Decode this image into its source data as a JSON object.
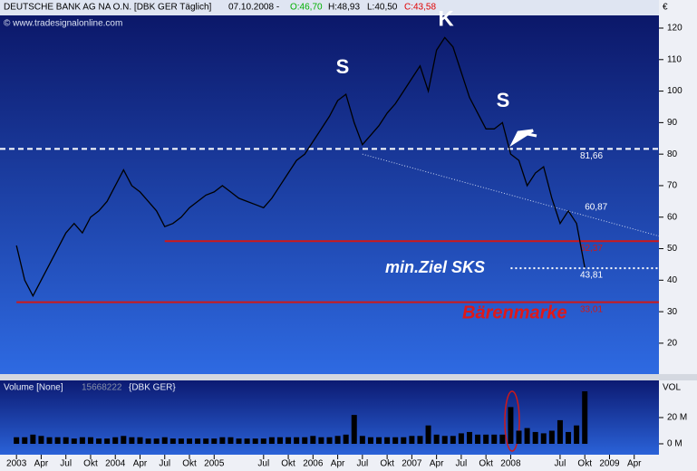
{
  "chart_data": {
    "type": "line",
    "header": {
      "name": "DEUTSCHE BANK AG NA O.N. [DBK GER  Täglich]",
      "date": "07.10.2008 -",
      "open": "O:46,70",
      "high": "H:48,93",
      "low": "L:40,50",
      "close": "C:43,58"
    },
    "copyright": "© www.tradesignalonline.com",
    "currency": "€",
    "x": [
      "2003-01",
      "2003-02",
      "2003-03",
      "2003-04",
      "2003-05",
      "2003-06",
      "2003-07",
      "2003-08",
      "2003-09",
      "2003-10",
      "2003-11",
      "2003-12",
      "2004-01",
      "2004-02",
      "2004-03",
      "2004-04",
      "2004-05",
      "2004-06",
      "2004-07",
      "2004-08",
      "2004-09",
      "2004-10",
      "2004-11",
      "2004-12",
      "2005-01",
      "2005-02",
      "2005-03",
      "2005-04",
      "2005-05",
      "2005-06",
      "2005-07",
      "2005-08",
      "2005-09",
      "2005-10",
      "2005-11",
      "2005-12",
      "2006-01",
      "2006-02",
      "2006-03",
      "2006-04",
      "2006-05",
      "2006-06",
      "2006-07",
      "2006-08",
      "2006-09",
      "2006-10",
      "2006-11",
      "2006-12",
      "2007-01",
      "2007-02",
      "2007-03",
      "2007-04",
      "2007-05",
      "2007-06",
      "2007-07",
      "2007-08",
      "2007-09",
      "2007-10",
      "2007-11",
      "2007-12",
      "2008-01",
      "2008-02",
      "2008-03",
      "2008-04",
      "2008-05",
      "2008-06",
      "2008-07",
      "2008-08",
      "2008-09",
      "2008-10"
    ],
    "series": [
      {
        "name": "DEUTSCHE BANK AG NA O.N.",
        "color": "#000000",
        "values": [
          51,
          40,
          35,
          40,
          45,
          50,
          55,
          58,
          55,
          60,
          62,
          65,
          70,
          75,
          70,
          68,
          65,
          62,
          57,
          58,
          60,
          63,
          65,
          67,
          68,
          70,
          68,
          66,
          65,
          64,
          63,
          66,
          70,
          74,
          78,
          80,
          84,
          88,
          92,
          97,
          99,
          90,
          83,
          86,
          89,
          93,
          96,
          100,
          104,
          108,
          100,
          113,
          117,
          114,
          106,
          98,
          93,
          88,
          88,
          90,
          80,
          78,
          70,
          74,
          76,
          66,
          58,
          62,
          58,
          44
        ]
      }
    ],
    "xlim": [
      "2002-11",
      "2009-07"
    ],
    "ylim": [
      10.2,
      124.6
    ],
    "yticks": [
      20,
      30,
      40,
      50,
      60,
      70,
      80,
      90,
      100,
      110,
      120
    ],
    "xticks": [
      {
        "value": "2003-01",
        "label": "2003"
      },
      {
        "value": "2003-04",
        "label": "Apr"
      },
      {
        "value": "2003-07",
        "label": "Jul"
      },
      {
        "value": "2003-10",
        "label": "Okt"
      },
      {
        "value": "2004-01",
        "label": "2004"
      },
      {
        "value": "2004-04",
        "label": "Apr"
      },
      {
        "value": "2004-07",
        "label": "Jul"
      },
      {
        "value": "2004-10",
        "label": "Okt"
      },
      {
        "value": "2005-01",
        "label": "2005"
      },
      {
        "value": "2005-07",
        "label": "Jul"
      },
      {
        "value": "2005-10",
        "label": "Okt"
      },
      {
        "value": "2006-01",
        "label": "2006"
      },
      {
        "value": "2006-04",
        "label": "Apr"
      },
      {
        "value": "2006-07",
        "label": "Jul"
      },
      {
        "value": "2006-10",
        "label": "Okt"
      },
      {
        "value": "2007-01",
        "label": "2007"
      },
      {
        "value": "2007-04",
        "label": "Apr"
      },
      {
        "value": "2007-07",
        "label": "Jul"
      },
      {
        "value": "2007-10",
        "label": "Okt"
      },
      {
        "value": "2008-01",
        "label": "2008"
      },
      {
        "value": "2008-07",
        "label": "Jul"
      },
      {
        "value": "2008-10",
        "label": "Okt"
      },
      {
        "value": "2009-01",
        "label": "2009"
      },
      {
        "value": "2009-04",
        "label": "Apr"
      }
    ],
    "levels": [
      {
        "value": 81.66,
        "label": "81,66",
        "from": "2002-11",
        "color": "#ffffff",
        "style": "dashed"
      },
      {
        "value": 52.37,
        "label": "52,37",
        "from": "2004-07",
        "color": "#d01818",
        "style": "solid"
      },
      {
        "value": 43.81,
        "label": "43,81",
        "from": "2008-01",
        "color": "#ffffff",
        "style": "dotted"
      },
      {
        "value": 33.01,
        "label": "33,01",
        "from": "2003-01",
        "color": "#d01818",
        "style": "solid"
      }
    ],
    "trendline": {
      "x": [
        "2006-07",
        "2009-07"
      ],
      "values": [
        80,
        54
      ],
      "label": {
        "value": 60.87,
        "label": "60,87"
      },
      "label_x": "2008-10"
    },
    "annotations": [
      "S",
      "K",
      "S",
      "min.Ziel SKS",
      "Bärenmarke"
    ],
    "volume": {
      "title": "Volume [None]",
      "last": 15668222,
      "symbol": "{DBK GER}",
      "axis_title": "VOL",
      "color": "#000000",
      "values": [
        5,
        5,
        7,
        6,
        5,
        5,
        5,
        4,
        5,
        5,
        4,
        4,
        5,
        6,
        5,
        5,
        4,
        4,
        5,
        4,
        4,
        4,
        4,
        4,
        4,
        5,
        5,
        4,
        4,
        4,
        4,
        5,
        5,
        5,
        5,
        5,
        6,
        5,
        5,
        6,
        7,
        22,
        6,
        5,
        5,
        5,
        5,
        5,
        6,
        6,
        14,
        7,
        6,
        6,
        8,
        9,
        7,
        7,
        7,
        7,
        28,
        10,
        12,
        9,
        8,
        10,
        18,
        9,
        14,
        40
      ],
      "ylim": [
        -8.3,
        48.3
      ],
      "yticks": [
        {
          "value": 20,
          "label": "20 M"
        },
        {
          "value": 0,
          "label": "0 M"
        }
      ]
    }
  }
}
